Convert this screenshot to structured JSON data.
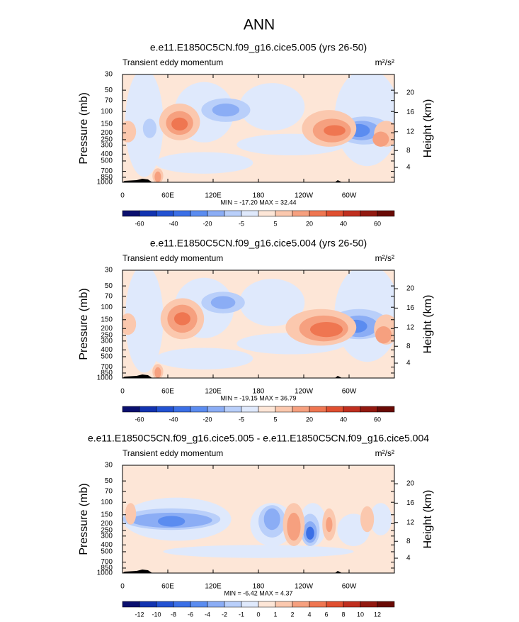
{
  "title": "ANN",
  "chart_data": [
    {
      "type": "contour",
      "title": "e.e11.E1850C5CN.f09_g16.cice5.005 (yrs 26-50)",
      "subtitle": "Transient eddy momentum",
      "units": "m²/s²",
      "ylabel": "Pressure (mb)",
      "y2label": "Height (km)",
      "yscale": "log",
      "ylim": [
        1000,
        30
      ],
      "yticks": [
        30,
        50,
        70,
        100,
        150,
        200,
        250,
        300,
        400,
        500,
        700,
        850,
        1000
      ],
      "y2ticks": [
        4,
        8,
        12,
        16,
        20
      ],
      "xlim": [
        0,
        360
      ],
      "xticks": [
        0,
        {
          "value": 60,
          "label": "60E"
        },
        {
          "value": 120,
          "label": "120E"
        },
        180,
        {
          "value": 240,
          "label": "120W"
        },
        {
          "value": 300,
          "label": "60W"
        }
      ],
      "stats": "MIN = -17.20  MAX =  32.44",
      "colorbar": {
        "ticks": [
          -60,
          null,
          -40,
          null,
          -20,
          null,
          -5,
          null,
          5,
          null,
          20,
          null,
          40,
          null,
          60
        ],
        "colors": [
          "#0a0f6e",
          "#1233b0",
          "#2352d2",
          "#3b6fe6",
          "#5b8cf0",
          "#8badf5",
          "#b9cffa",
          "#dfe9fc",
          "#fde6d7",
          "#fbc8ae",
          "#f6a07f",
          "#ef7651",
          "#e04f30",
          "#c02f1f",
          "#921910",
          "#690a05"
        ]
      }
    },
    {
      "type": "contour",
      "title": "e.e11.E1850C5CN.f09_g16.cice5.004 (yrs 26-50)",
      "subtitle": "Transient eddy momentum",
      "units": "m²/s²",
      "ylabel": "Pressure (mb)",
      "y2label": "Height (km)",
      "yscale": "log",
      "ylim": [
        1000,
        30
      ],
      "yticks": [
        30,
        50,
        70,
        100,
        150,
        200,
        250,
        300,
        400,
        500,
        700,
        850,
        1000
      ],
      "y2ticks": [
        4,
        8,
        12,
        16,
        20
      ],
      "xlim": [
        0,
        360
      ],
      "xticks": [
        0,
        {
          "value": 60,
          "label": "60E"
        },
        {
          "value": 120,
          "label": "120E"
        },
        180,
        {
          "value": 240,
          "label": "120W"
        },
        {
          "value": 300,
          "label": "60W"
        }
      ],
      "stats": "MIN = -19.15  MAX =  36.79",
      "colorbar": {
        "ticks": [
          -60,
          null,
          -40,
          null,
          -20,
          null,
          -5,
          null,
          5,
          null,
          20,
          null,
          40,
          null,
          60
        ],
        "colors": [
          "#0a0f6e",
          "#1233b0",
          "#2352d2",
          "#3b6fe6",
          "#5b8cf0",
          "#8badf5",
          "#b9cffa",
          "#dfe9fc",
          "#fde6d7",
          "#fbc8ae",
          "#f6a07f",
          "#ef7651",
          "#e04f30",
          "#c02f1f",
          "#921910",
          "#690a05"
        ]
      }
    },
    {
      "type": "contour",
      "title": "e.e11.E1850C5CN.f09_g16.cice5.005 - e.e11.E1850C5CN.f09_g16.cice5.004",
      "subtitle": "Transient eddy momentum",
      "units": "m²/s²",
      "ylabel": "Pressure (mb)",
      "y2label": "Height (km)",
      "yscale": "log",
      "ylim": [
        1000,
        30
      ],
      "yticks": [
        30,
        50,
        70,
        100,
        150,
        200,
        250,
        300,
        400,
        500,
        700,
        850,
        1000
      ],
      "y2ticks": [
        4,
        8,
        12,
        16,
        20
      ],
      "xlim": [
        0,
        360
      ],
      "xticks": [
        0,
        {
          "value": 60,
          "label": "60E"
        },
        {
          "value": 120,
          "label": "120E"
        },
        180,
        {
          "value": 240,
          "label": "120W"
        },
        {
          "value": 300,
          "label": "60W"
        }
      ],
      "stats": "MIN =  -6.42  MAX =   4.37",
      "colorbar": {
        "ticks": [
          -12,
          -10,
          -8,
          -6,
          -4,
          -2,
          -1,
          0,
          1,
          2,
          4,
          6,
          8,
          10,
          12
        ],
        "colors": [
          "#0a0f6e",
          "#1233b0",
          "#2352d2",
          "#3b6fe6",
          "#5b8cf0",
          "#8badf5",
          "#b9cffa",
          "#dfe9fc",
          "#fde6d7",
          "#fbc8ae",
          "#f6a07f",
          "#ef7651",
          "#e04f30",
          "#c02f1f",
          "#921910",
          "#690a05"
        ]
      }
    }
  ]
}
